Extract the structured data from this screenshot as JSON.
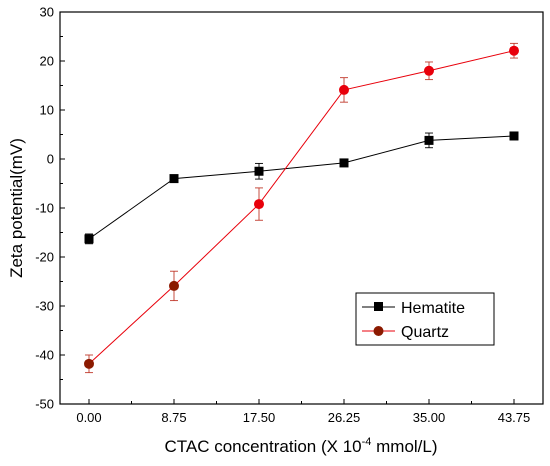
{
  "chart_data": {
    "type": "line",
    "x": [
      "0.00",
      "8.75",
      "17.50",
      "26.25",
      "35.00",
      "43.75"
    ],
    "xlabel_main": "CTAC concentration (X 10",
    "xlabel_exp": "-4",
    "xlabel_unit": " mmol/L)",
    "ylabel": "Zeta potential(mV)",
    "ylim": [
      -50,
      30
    ],
    "yticks": [
      "30",
      "20",
      "10",
      "0",
      "-10",
      "-20",
      "-30",
      "-40",
      "-50"
    ],
    "grid": false,
    "legend_position": "bottom-right",
    "series": [
      {
        "name": "Hematite",
        "color": "#000000",
        "marker": "square",
        "values": [
          -16.3,
          -4.0,
          -2.5,
          -0.8,
          3.8,
          4.7
        ],
        "errors": [
          1.0,
          0.3,
          1.6,
          0.4,
          1.5,
          0.8
        ]
      },
      {
        "name": "Quartz",
        "color": "#e8000b",
        "marker_colors": [
          "#8b1a00",
          "#8b1a00",
          "#e8000b",
          "#e8000b",
          "#e8000b",
          "#e8000b"
        ],
        "marker": "circle",
        "values": [
          -41.8,
          -25.9,
          -9.2,
          14.1,
          18.0,
          22.1
        ],
        "errors": [
          1.8,
          3.0,
          3.3,
          2.5,
          1.8,
          1.5
        ]
      }
    ]
  }
}
